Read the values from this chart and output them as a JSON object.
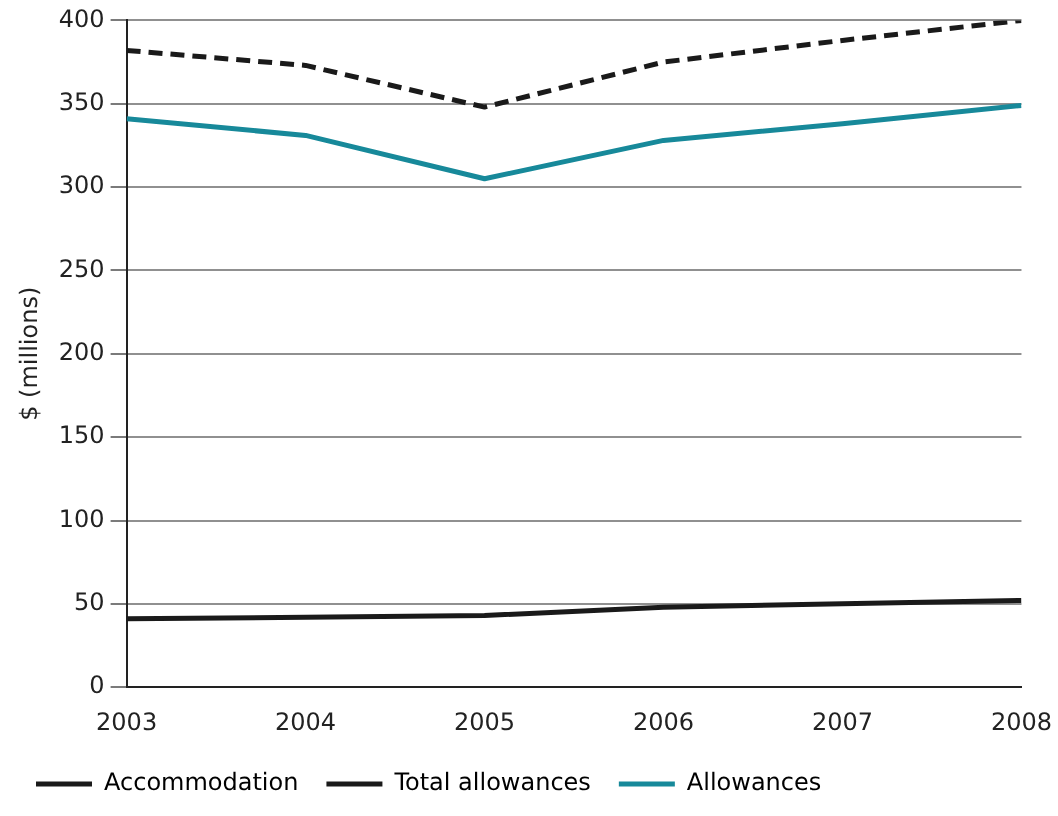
{
  "chart_data": {
    "type": "line",
    "ylabel": "$ (millions)",
    "x": [
      2003,
      2004,
      2005,
      2006,
      2007,
      2008
    ],
    "xlim": [
      2003,
      2008
    ],
    "xticks": [
      2003,
      2004,
      2005,
      2006,
      2007,
      2008
    ],
    "ylim": [
      0,
      400
    ],
    "yticks": [
      0,
      50,
      100,
      150,
      200,
      250,
      300,
      350,
      400
    ],
    "grid": "y",
    "legend": "bottom",
    "marker": "none",
    "series": [
      {
        "name": "Accommodation",
        "color": "#1a1a1a",
        "line_style": "solid",
        "values": [
          41,
          42,
          43,
          48,
          50,
          52
        ]
      },
      {
        "name": "Total allowances",
        "color": "#1a1a1a",
        "line_style": "dashed",
        "values": [
          382,
          373,
          348,
          375,
          388,
          400
        ]
      },
      {
        "name": "Allowances",
        "color": "#17899a",
        "line_style": "solid",
        "values": [
          341,
          331,
          305,
          328,
          338,
          349
        ]
      }
    ]
  }
}
